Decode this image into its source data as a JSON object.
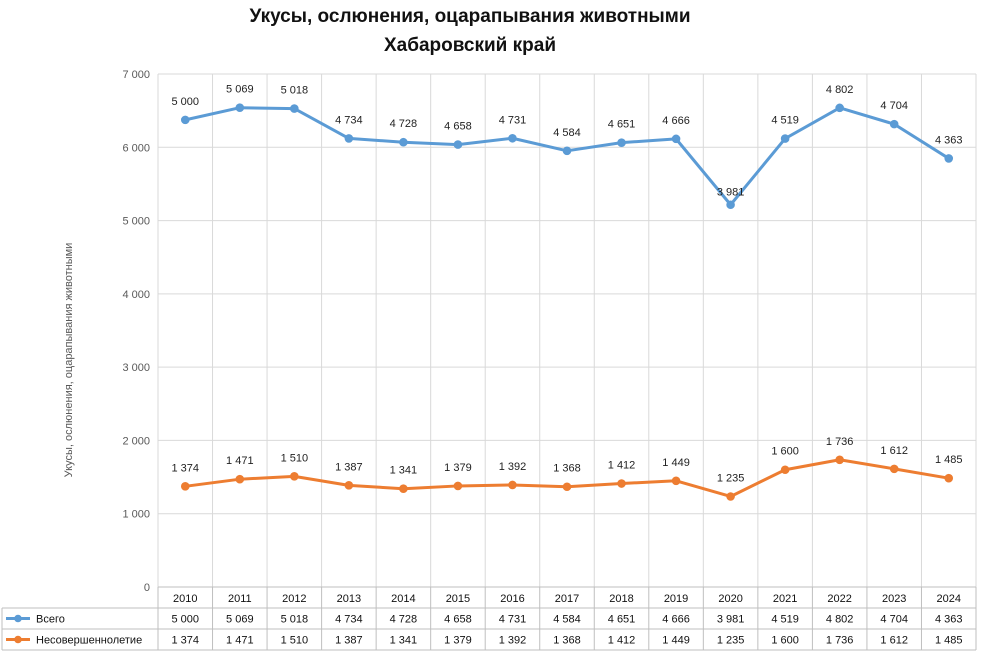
{
  "title_line1": "Укусы, ослюнения, оцарапывания животными",
  "title_line2": "Хабаровский край",
  "chart_data": {
    "type": "line",
    "title": "Укусы, ослюнения, оцарапывания животными Хабаровский край",
    "ylabel": "Укусы, ослюнения, оцарапывания животными",
    "xlabel": "",
    "ylim": [
      0,
      7000
    ],
    "yticks": [
      "0",
      "1 000",
      "2 000",
      "3 000",
      "4 000",
      "5 000",
      "6 000",
      "7 000"
    ],
    "grid": true,
    "legend": "data-table",
    "categories": [
      "2010",
      "2011",
      "2012",
      "2013",
      "2014",
      "2015",
      "2016",
      "2017",
      "2018",
      "2019",
      "2020",
      "2021",
      "2022",
      "2023",
      "2024"
    ],
    "series": [
      {
        "name": "Всего",
        "color": "#5B9BD5",
        "plotted": [
          6374,
          6540,
          6528,
          6121,
          6069,
          6037,
          6123,
          5952,
          6063,
          6115,
          5216,
          6119,
          6538,
          6316,
          5848
        ],
        "labels": [
          "5 000",
          "5 069",
          "5 018",
          "4 734",
          "4 728",
          "4 658",
          "4 731",
          "4 584",
          "4 651",
          "4 666",
          "3 981",
          "4 519",
          "4 802",
          "4 704",
          "4 363"
        ]
      },
      {
        "name": "Несовершеннолетие",
        "color": "#ED7D31",
        "plotted": [
          1374,
          1471,
          1510,
          1387,
          1341,
          1379,
          1392,
          1368,
          1412,
          1449,
          1235,
          1600,
          1736,
          1612,
          1485
        ],
        "labels": [
          "1 374",
          "1 471",
          "1 510",
          "1 387",
          "1 341",
          "1 379",
          "1 392",
          "1 368",
          "1 412",
          "1 449",
          "1 235",
          "1 600",
          "1 736",
          "1 612",
          "1 485"
        ]
      }
    ]
  }
}
